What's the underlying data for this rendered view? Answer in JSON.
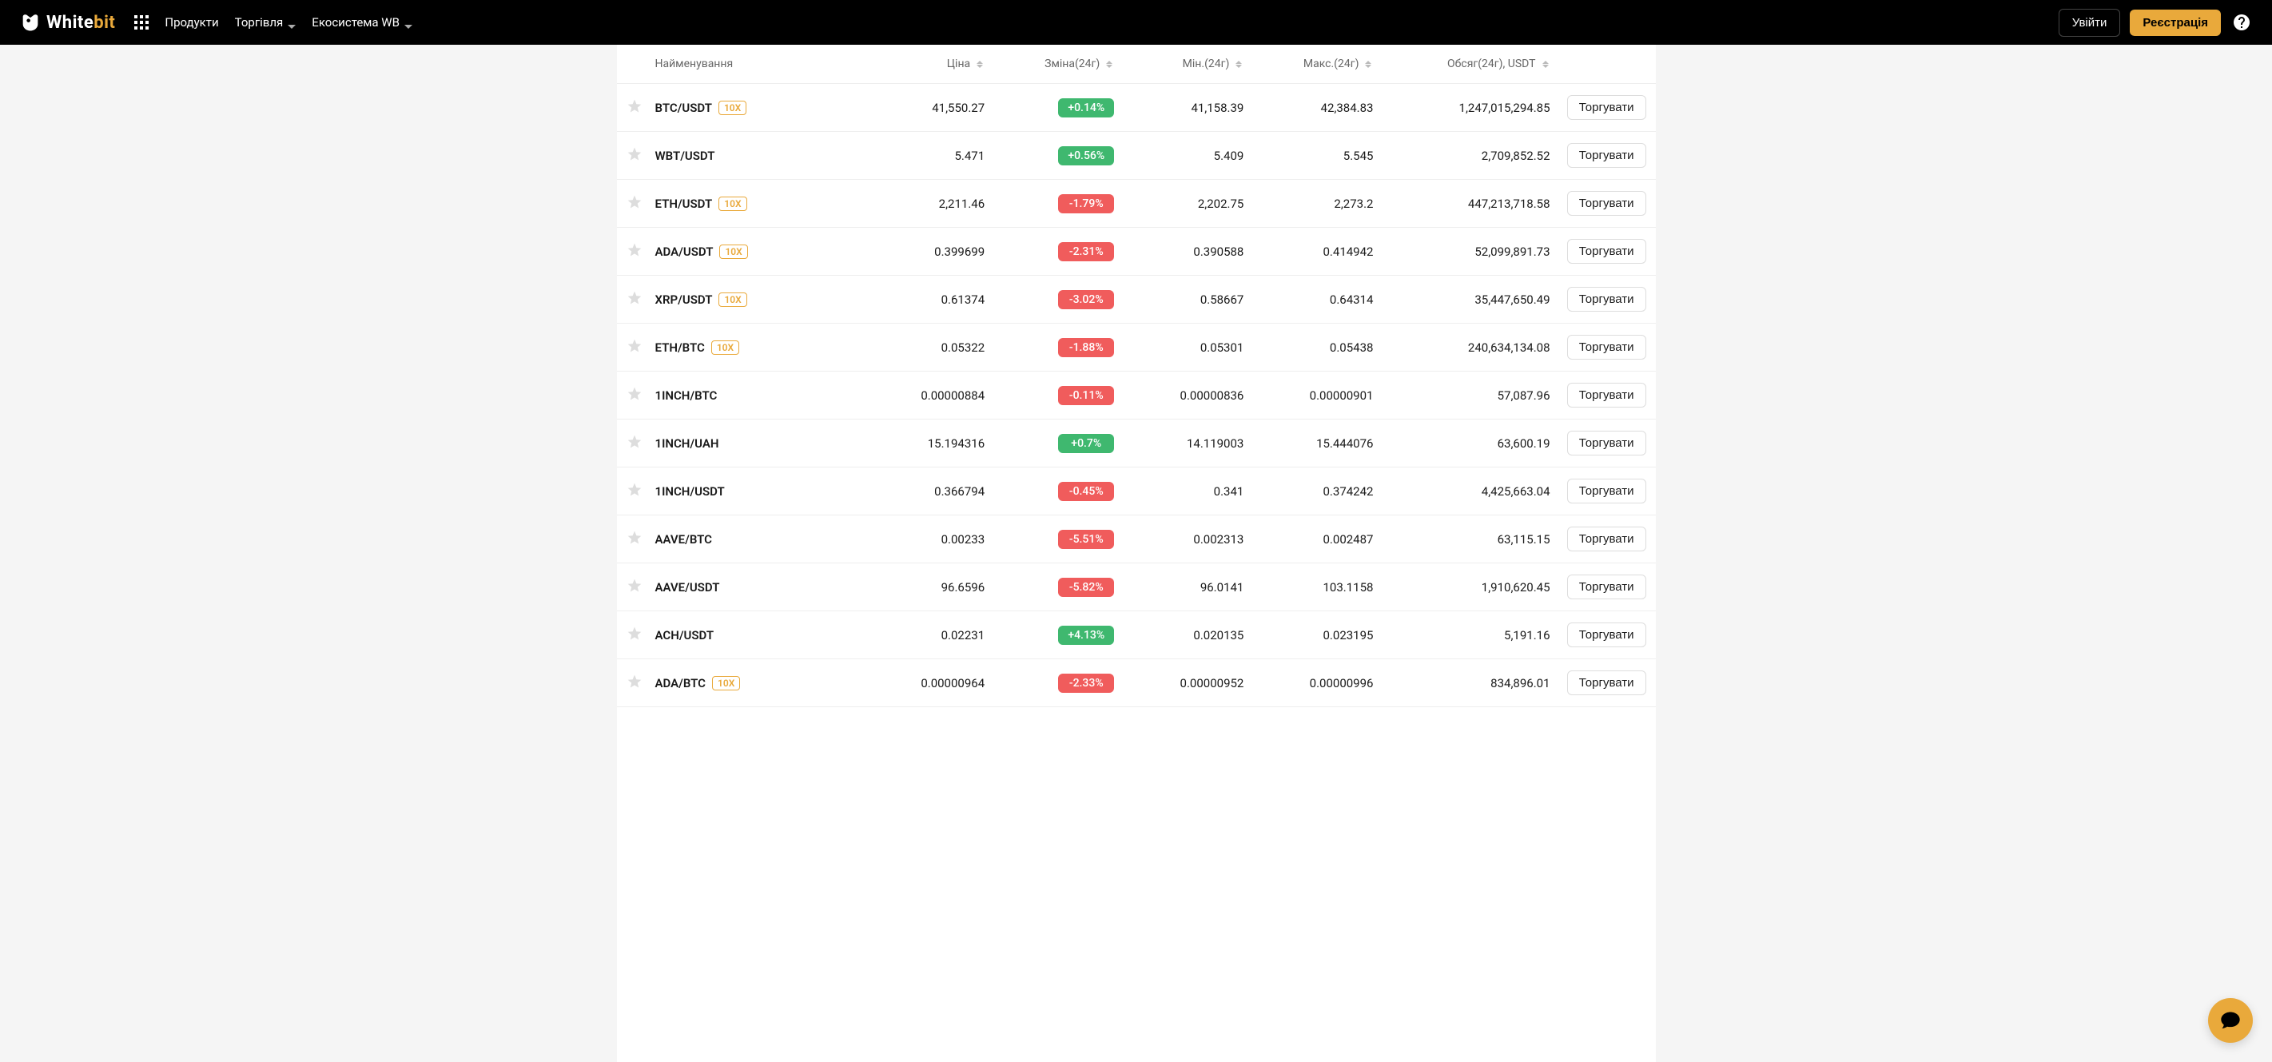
{
  "header": {
    "logo_text_white": "White",
    "logo_text_gold": "bit",
    "nav": {
      "products": "Продукти",
      "trade": "Торгівля",
      "ecosystem": "Екосистема WB"
    },
    "login": "Увійти",
    "register": "Реєстрація"
  },
  "columns": {
    "name": "Найменування",
    "price": "Ціна",
    "change": "Зміна(24г)",
    "min": "Мін.(24г)",
    "max": "Макс.(24г)",
    "volume": "Обсяг(24г), USDT"
  },
  "trade_label": "Торгувати",
  "colors": {
    "positive": "#3fb86f",
    "negative": "#f05c5c",
    "accent": "#e9a93b"
  },
  "rows": [
    {
      "pair": "BTC/USDT",
      "leverage": "10X",
      "price": "41,550.27",
      "change": "+0.14%",
      "dir": "pos",
      "min": "41,158.39",
      "max": "42,384.83",
      "volume": "1,247,015,294.85"
    },
    {
      "pair": "WBT/USDT",
      "leverage": "",
      "price": "5.471",
      "change": "+0.56%",
      "dir": "pos",
      "min": "5.409",
      "max": "5.545",
      "volume": "2,709,852.52"
    },
    {
      "pair": "ETH/USDT",
      "leverage": "10X",
      "price": "2,211.46",
      "change": "-1.79%",
      "dir": "neg",
      "min": "2,202.75",
      "max": "2,273.2",
      "volume": "447,213,718.58"
    },
    {
      "pair": "ADA/USDT",
      "leverage": "10X",
      "price": "0.399699",
      "change": "-2.31%",
      "dir": "neg",
      "min": "0.390588",
      "max": "0.414942",
      "volume": "52,099,891.73"
    },
    {
      "pair": "XRP/USDT",
      "leverage": "10X",
      "price": "0.61374",
      "change": "-3.02%",
      "dir": "neg",
      "min": "0.58667",
      "max": "0.64314",
      "volume": "35,447,650.49"
    },
    {
      "pair": "ETH/BTC",
      "leverage": "10X",
      "price": "0.05322",
      "change": "-1.88%",
      "dir": "neg",
      "min": "0.05301",
      "max": "0.05438",
      "volume": "240,634,134.08"
    },
    {
      "pair": "1INCH/BTC",
      "leverage": "",
      "price": "0.00000884",
      "change": "-0.11%",
      "dir": "neg",
      "min": "0.00000836",
      "max": "0.00000901",
      "volume": "57,087.96"
    },
    {
      "pair": "1INCH/UAH",
      "leverage": "",
      "price": "15.194316",
      "change": "+0.7%",
      "dir": "pos",
      "min": "14.119003",
      "max": "15.444076",
      "volume": "63,600.19"
    },
    {
      "pair": "1INCH/USDT",
      "leverage": "",
      "price": "0.366794",
      "change": "-0.45%",
      "dir": "neg",
      "min": "0.341",
      "max": "0.374242",
      "volume": "4,425,663.04"
    },
    {
      "pair": "AAVE/BTC",
      "leverage": "",
      "price": "0.00233",
      "change": "-5.51%",
      "dir": "neg",
      "min": "0.002313",
      "max": "0.002487",
      "volume": "63,115.15"
    },
    {
      "pair": "AAVE/USDT",
      "leverage": "",
      "price": "96.6596",
      "change": "-5.82%",
      "dir": "neg",
      "min": "96.0141",
      "max": "103.1158",
      "volume": "1,910,620.45"
    },
    {
      "pair": "ACH/USDT",
      "leverage": "",
      "price": "0.02231",
      "change": "+4.13%",
      "dir": "pos",
      "min": "0.020135",
      "max": "0.023195",
      "volume": "5,191.16"
    },
    {
      "pair": "ADA/BTC",
      "leverage": "10X",
      "price": "0.00000964",
      "change": "-2.33%",
      "dir": "neg",
      "min": "0.00000952",
      "max": "0.00000996",
      "volume": "834,896.01"
    }
  ]
}
